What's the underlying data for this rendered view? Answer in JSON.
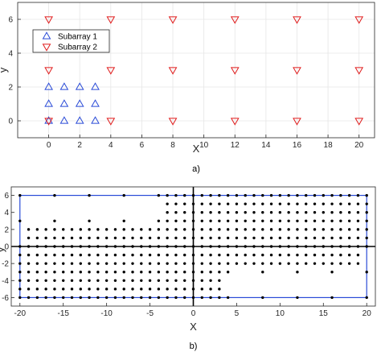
{
  "chart_data": [
    {
      "type": "scatter",
      "panel_caption": "a)",
      "xlabel": "X",
      "ylabel": "y",
      "xlim": [
        -2,
        21
      ],
      "ylim": [
        -1,
        7
      ],
      "xticks": [
        0,
        2,
        4,
        6,
        8,
        10,
        12,
        14,
        16,
        18,
        20
      ],
      "yticks": [
        0,
        2,
        4,
        6
      ],
      "grid": true,
      "legend_position": "upper-left",
      "series": [
        {
          "name": "Subarray 1",
          "marker": "triangle-up",
          "color": "#2a4bd7",
          "x": [
            0,
            1,
            2,
            3,
            0,
            1,
            2,
            3,
            0,
            1,
            2,
            3
          ],
          "y": [
            0,
            0,
            0,
            0,
            1,
            1,
            1,
            1,
            2,
            2,
            2,
            2
          ]
        },
        {
          "name": "Subarray 2",
          "marker": "triangle-down",
          "color": "#e01b1b",
          "x": [
            0,
            4,
            8,
            12,
            16,
            20,
            0,
            4,
            8,
            12,
            16,
            20,
            0,
            4,
            8,
            12,
            16,
            20
          ],
          "y": [
            0,
            0,
            0,
            0,
            0,
            0,
            3,
            3,
            3,
            3,
            3,
            3,
            6,
            6,
            6,
            6,
            6,
            6
          ]
        }
      ]
    },
    {
      "type": "scatter",
      "panel_caption": "b)",
      "xlabel": "X",
      "ylabel": "y",
      "xlim": [
        -21,
        21
      ],
      "ylim": [
        -7,
        7
      ],
      "xticks": [
        -20,
        -15,
        -10,
        -5,
        0,
        5,
        10,
        15,
        20
      ],
      "yticks": [
        -6,
        -4,
        -2,
        0,
        2,
        4,
        6
      ],
      "grid": false,
      "marker": "dot",
      "marker_color": "#000000",
      "boundary_color": "#2a4bd7",
      "boundary_rectangle": {
        "x": [
          -20,
          20
        ],
        "y": [
          -6,
          6
        ]
      },
      "point_rows": [
        {
          "y": 6,
          "x": [
            -20,
            -16,
            -12,
            -8,
            -4,
            -3,
            -2,
            -1,
            0,
            1,
            2,
            3,
            4,
            5,
            6,
            7,
            8,
            9,
            10,
            11,
            12,
            13,
            14,
            15,
            16,
            17,
            18,
            19,
            20
          ]
        },
        {
          "y": 5,
          "x": [
            -3,
            -2,
            -1,
            0,
            1,
            2,
            3,
            4,
            5,
            6,
            7,
            8,
            9,
            10,
            11,
            12,
            13,
            14,
            15,
            16,
            17,
            18,
            19,
            20
          ]
        },
        {
          "y": 4,
          "x": [
            -3,
            -2,
            -1,
            0,
            1,
            2,
            3,
            4,
            5,
            6,
            7,
            8,
            9,
            10,
            11,
            12,
            13,
            14,
            15,
            16,
            17,
            18,
            19,
            20
          ]
        },
        {
          "y": 3,
          "x": [
            -20,
            -16,
            -12,
            -8,
            -4,
            -3,
            -2,
            -1,
            0,
            1,
            2,
            3,
            4,
            5,
            6,
            7,
            8,
            9,
            10,
            11,
            12,
            13,
            14,
            15,
            16,
            17,
            18,
            19,
            20
          ]
        },
        {
          "y": 2,
          "x": [
            -19,
            -18,
            -17,
            -16,
            -15,
            -14,
            -13,
            -12,
            -11,
            -10,
            -9,
            -8,
            -7,
            -6,
            -5,
            -4,
            -3,
            -2,
            -1,
            0,
            1,
            2,
            3,
            4,
            5,
            6,
            7,
            8,
            9,
            10,
            11,
            12,
            13,
            14,
            15,
            16,
            17,
            18,
            19,
            20
          ]
        },
        {
          "y": 1,
          "x": [
            -19,
            -18,
            -17,
            -16,
            -15,
            -14,
            -13,
            -12,
            -11,
            -10,
            -9,
            -8,
            -7,
            -6,
            -5,
            -4,
            -3,
            -2,
            -1,
            0,
            1,
            2,
            3,
            4,
            5,
            6,
            7,
            8,
            9,
            10,
            11,
            12,
            13,
            14,
            15,
            16,
            17,
            18,
            19,
            20
          ]
        },
        {
          "y": 0,
          "x": [
            -20,
            -19,
            -18,
            -17,
            -16,
            -15,
            -14,
            -13,
            -12,
            -11,
            -10,
            -9,
            -8,
            -7,
            -6,
            -5,
            -4,
            -3,
            -2,
            -1,
            0,
            1,
            2,
            3,
            4,
            5,
            6,
            7,
            8,
            9,
            10,
            11,
            12,
            13,
            14,
            15,
            16,
            17,
            18,
            19,
            20
          ]
        },
        {
          "y": -1,
          "x": [
            -20,
            -19,
            -18,
            -17,
            -16,
            -15,
            -14,
            -13,
            -12,
            -11,
            -10,
            -9,
            -8,
            -7,
            -6,
            -5,
            -4,
            -3,
            -2,
            -1,
            0,
            1,
            2,
            3,
            4,
            5,
            6,
            7,
            8,
            9,
            10,
            11,
            12,
            13,
            14,
            15,
            16,
            17,
            18,
            19
          ]
        },
        {
          "y": -2,
          "x": [
            -20,
            -19,
            -18,
            -17,
            -16,
            -15,
            -14,
            -13,
            -12,
            -11,
            -10,
            -9,
            -8,
            -7,
            -6,
            -5,
            -4,
            -3,
            -2,
            -1,
            0,
            1,
            2,
            3,
            4,
            5,
            6,
            7,
            8,
            9,
            10,
            11,
            12,
            13,
            14,
            15,
            16,
            17,
            18,
            19
          ]
        },
        {
          "y": -3,
          "x": [
            -20,
            -19,
            -18,
            -17,
            -16,
            -15,
            -14,
            -13,
            -12,
            -11,
            -10,
            -9,
            -8,
            -7,
            -6,
            -5,
            -4,
            -3,
            -2,
            -1,
            0,
            1,
            2,
            3,
            4,
            8,
            12,
            16,
            20
          ]
        },
        {
          "y": -4,
          "x": [
            -20,
            -19,
            -18,
            -17,
            -16,
            -15,
            -14,
            -13,
            -12,
            -11,
            -10,
            -9,
            -8,
            -7,
            -6,
            -5,
            -4,
            -3,
            -2,
            -1,
            0,
            1,
            2,
            3
          ]
        },
        {
          "y": -5,
          "x": [
            -20,
            -19,
            -18,
            -17,
            -16,
            -15,
            -14,
            -13,
            -12,
            -11,
            -10,
            -9,
            -8,
            -7,
            -6,
            -5,
            -4,
            -3,
            -2,
            -1,
            0,
            1,
            2,
            3
          ]
        },
        {
          "y": -6,
          "x": [
            -20,
            -19,
            -18,
            -17,
            -16,
            -15,
            -14,
            -13,
            -12,
            -11,
            -10,
            -9,
            -8,
            -7,
            -6,
            -5,
            -4,
            -3,
            -2,
            -1,
            0,
            1,
            2,
            3,
            4,
            8,
            12,
            16,
            20
          ]
        }
      ]
    }
  ]
}
